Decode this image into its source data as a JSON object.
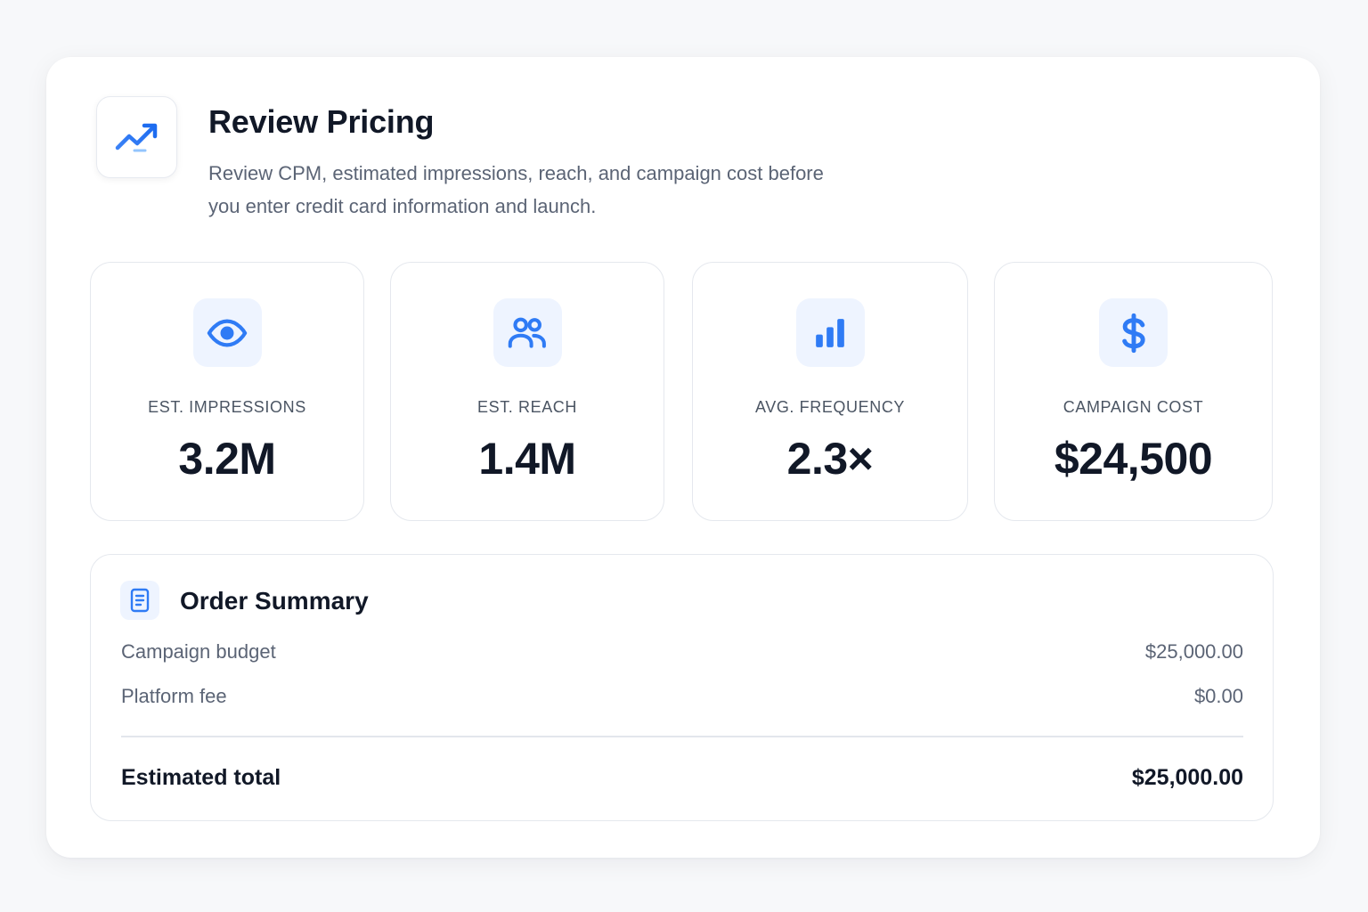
{
  "header": {
    "icon": "trending-up-icon",
    "title": "Review Pricing",
    "subtitle": "Review CPM, estimated impressions, reach, and campaign cost before you enter credit card information and launch."
  },
  "metrics": [
    {
      "icon": "eye-icon",
      "label": "EST. IMPRESSIONS",
      "value": "3.2M"
    },
    {
      "icon": "users-icon",
      "label": "EST. REACH",
      "value": "1.4M"
    },
    {
      "icon": "bar-chart-icon",
      "label": "AVG. FREQUENCY",
      "value": "2.3×"
    },
    {
      "icon": "dollar-icon",
      "label": "CAMPAIGN COST",
      "value": "$24,500"
    }
  ],
  "summary": {
    "icon": "document-icon",
    "title": "Order Summary",
    "rows": [
      {
        "label": "Campaign budget",
        "value": "$25,000.00"
      },
      {
        "label": "Platform fee",
        "value": "$0.00"
      }
    ],
    "total": {
      "label": "Estimated total",
      "value": "$25,000.00"
    }
  },
  "colors": {
    "accent": "#2f7bf5",
    "icon_bg": "#eef4ff",
    "text_primary": "#111827",
    "text_secondary": "#5b6475"
  }
}
